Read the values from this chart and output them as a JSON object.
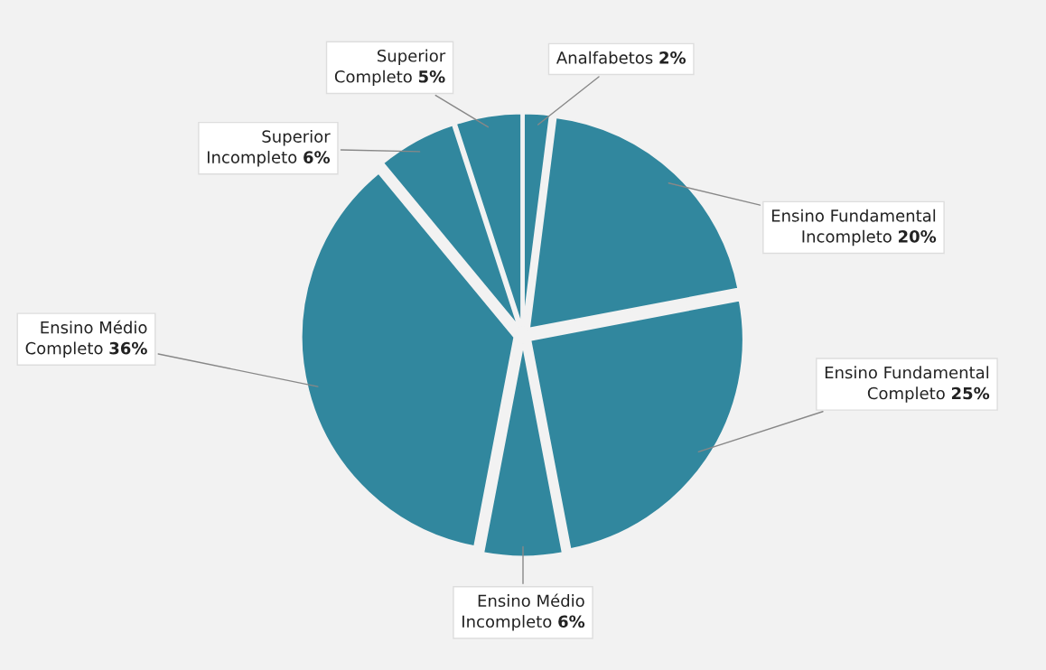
{
  "chart_data": {
    "type": "pie",
    "categories": [
      "Analfabetos",
      "Ensino Fundamental Incompleto",
      "Ensino Fundamental Completo",
      "Ensino Médio Incompleto",
      "Ensino Médio Completo",
      "Superior Incompleto",
      "Superior Completo"
    ],
    "values": [
      2,
      20,
      25,
      6,
      36,
      6,
      5
    ],
    "value_labels": [
      "2%",
      "20%",
      "25%",
      "6%",
      "36%",
      "6%",
      "5%"
    ],
    "colors": [
      "#31879e",
      "#31879e",
      "#31879e",
      "#31879e",
      "#31879e",
      "#31879e",
      "#31879e"
    ],
    "legend": false
  }
}
